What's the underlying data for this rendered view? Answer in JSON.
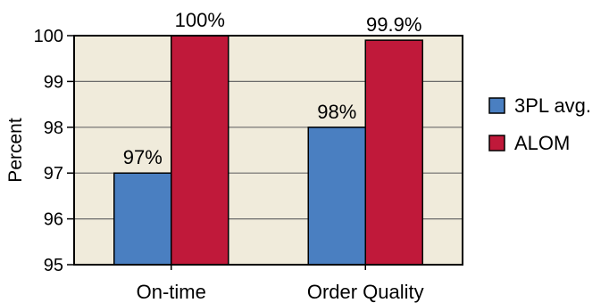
{
  "chart_data": {
    "type": "bar",
    "categories": [
      "On-time",
      "Order Quality"
    ],
    "series": [
      {
        "name": "3PL avg.",
        "values": [
          97,
          98
        ],
        "labels": [
          "97%",
          "98%"
        ],
        "color": "#4a7fc1"
      },
      {
        "name": "ALOM",
        "values": [
          100,
          99.9
        ],
        "labels": [
          "100%",
          "99.9%"
        ],
        "color": "#c0193a"
      }
    ],
    "ylabel": "Percent",
    "xlabel": "",
    "ylim": [
      95,
      100
    ],
    "yticks": [
      95,
      96,
      97,
      98,
      99,
      100
    ],
    "grid": true,
    "legend_position": "right",
    "plot_background": "#f0ebdb",
    "grid_color": "#6b6b6b"
  }
}
